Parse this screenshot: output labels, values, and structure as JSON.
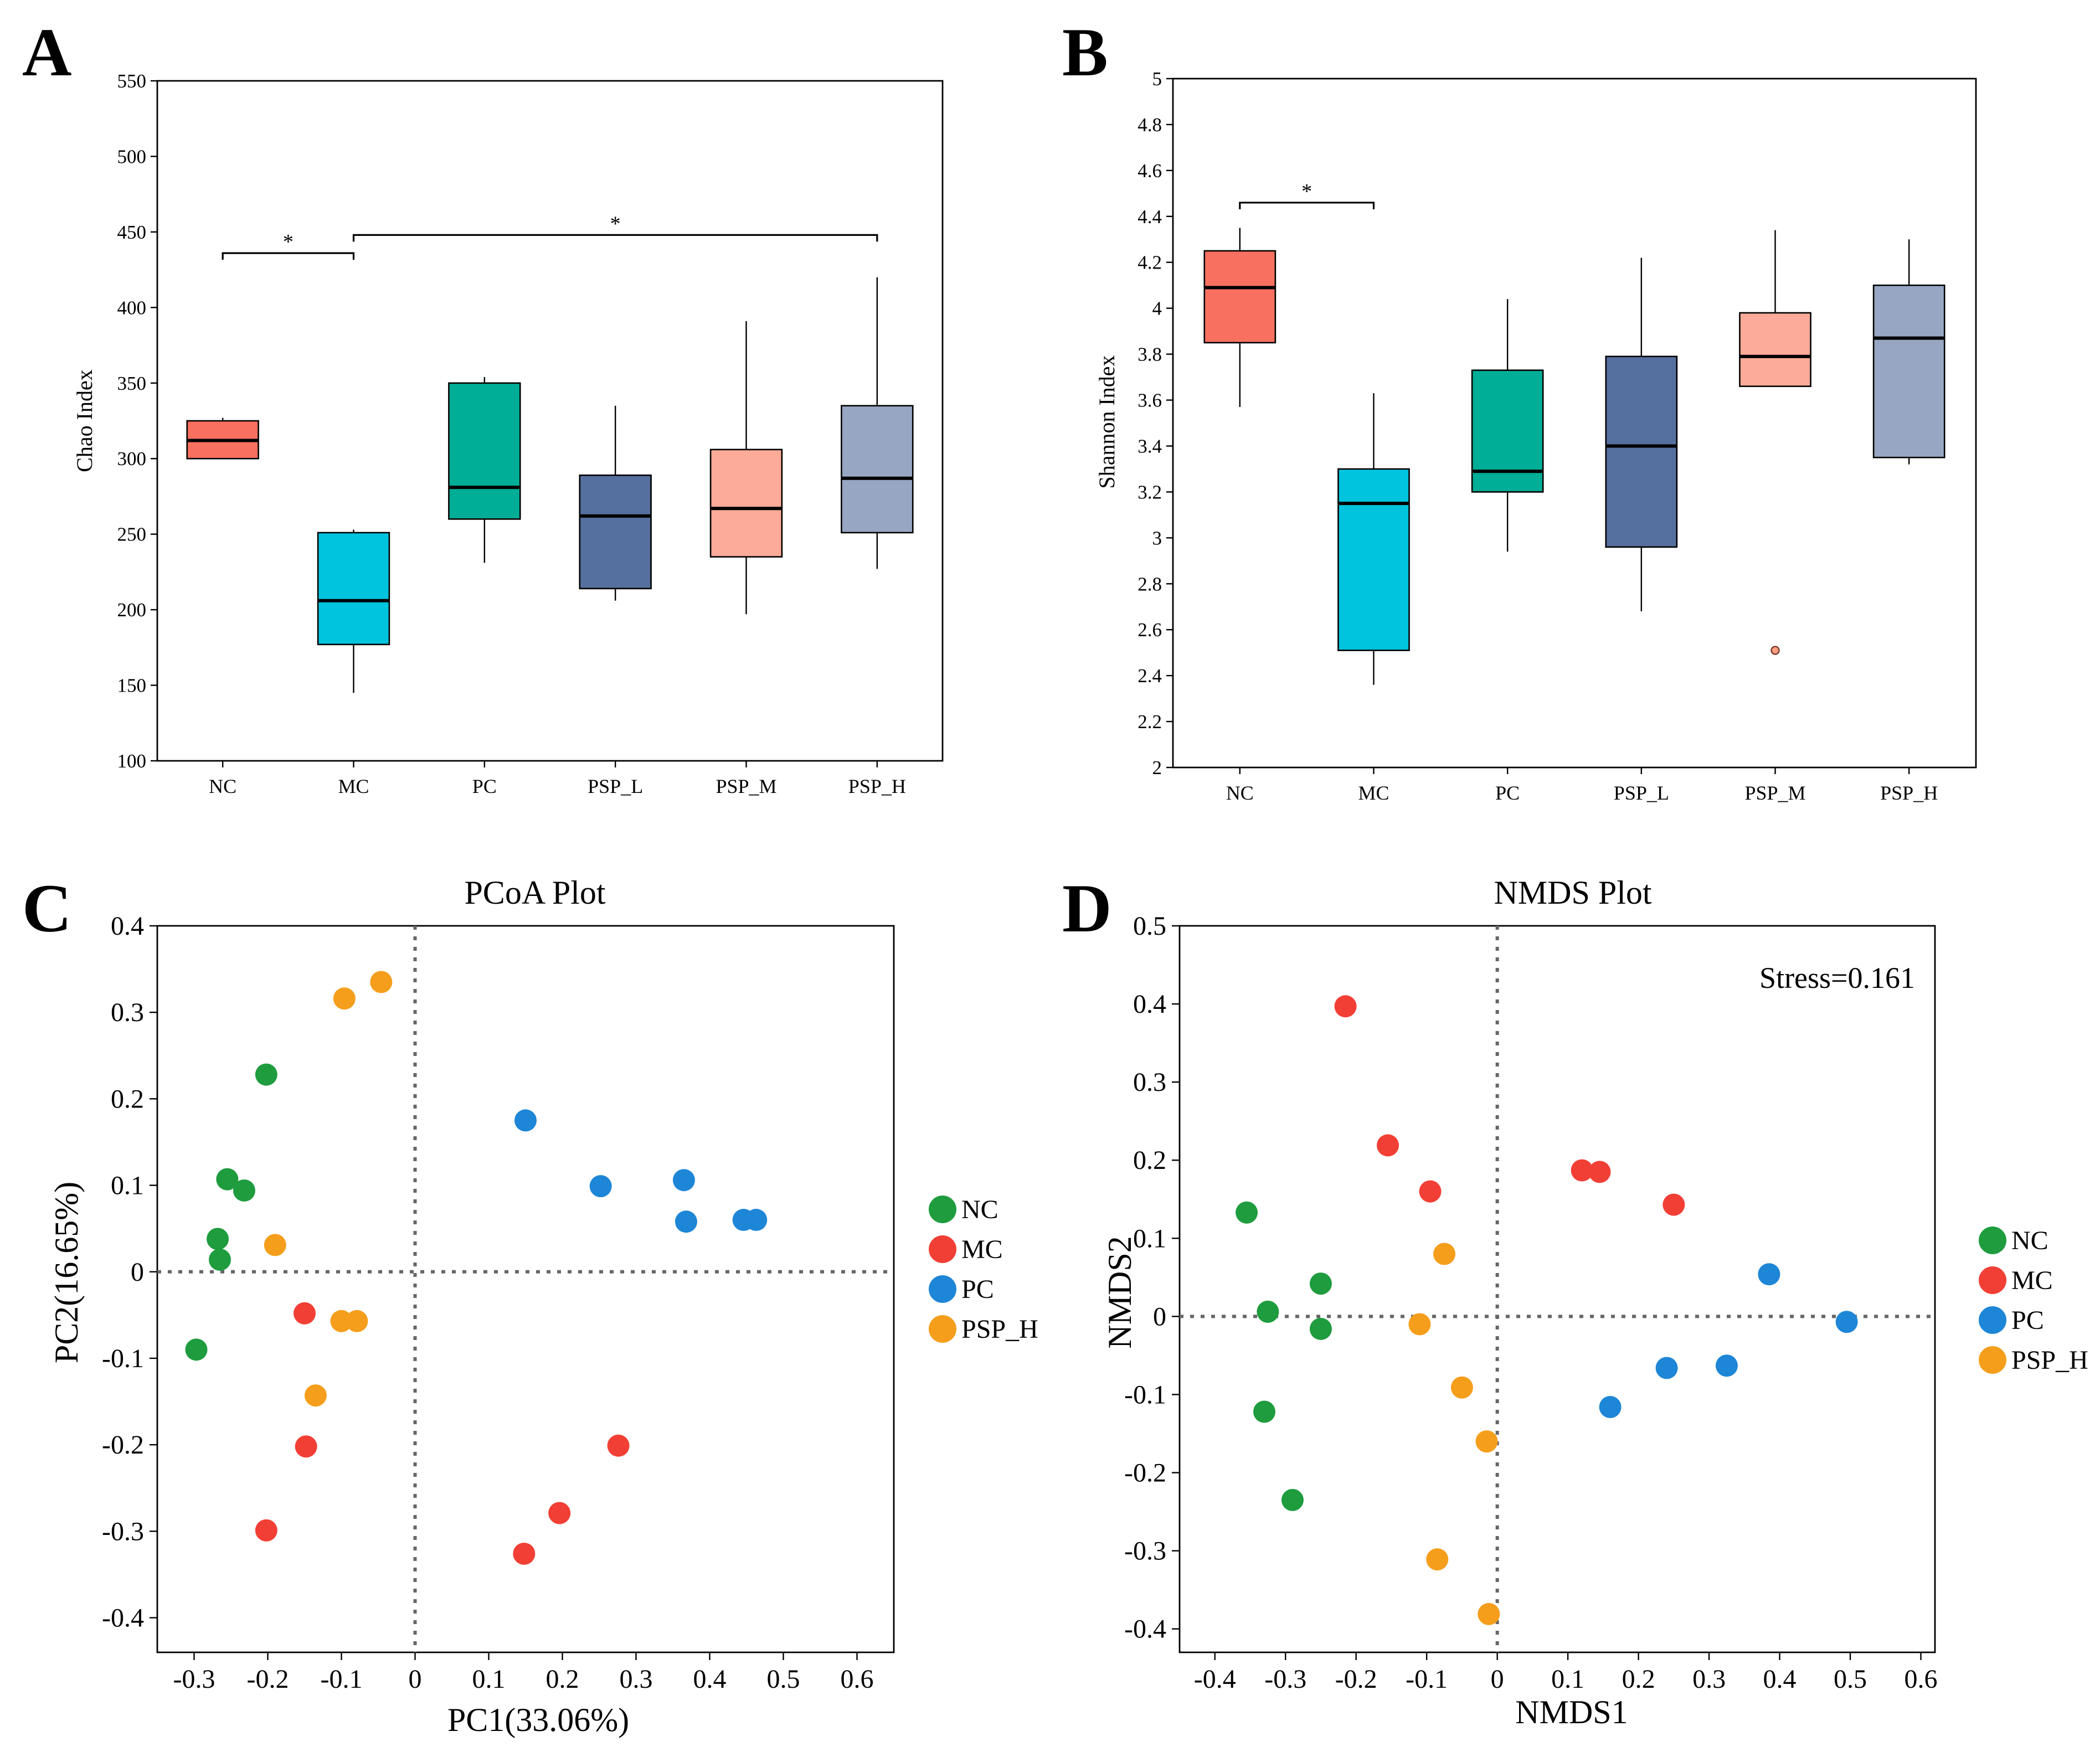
{
  "colors": {
    "box_NC": "#F8705F",
    "box_MC": "#00C4DD",
    "box_PC": "#00AD96",
    "box_PSP_L": "#556F9E",
    "box_PSP_M": "#FCAB98",
    "box_PSP_H": "#97A6C2",
    "pt_NC": "#1E9C3E",
    "pt_MC": "#F23F35",
    "pt_PC": "#1E86D6",
    "pt_PSP_H": "#F59E1C"
  },
  "chart_data": [
    {
      "panel_label": "A",
      "type": "box",
      "title": "",
      "xlabel": "",
      "ylabel": "Chao Index",
      "ylim": [
        100,
        550
      ],
      "yticks": [
        "100",
        "150",
        "200",
        "250",
        "300",
        "350",
        "400",
        "450",
        "500",
        "550"
      ],
      "categories": [
        "NC",
        "MC",
        "PC",
        "PSP_L",
        "PSP_M",
        "PSP_H"
      ],
      "boxes": [
        {
          "group": "NC",
          "min": 300,
          "q1": 300,
          "median": 312,
          "q3": 325,
          "max": 327
        },
        {
          "group": "MC",
          "min": 145,
          "q1": 177,
          "median": 206,
          "q3": 251,
          "max": 253
        },
        {
          "group": "PC",
          "min": 231,
          "q1": 260,
          "median": 281,
          "q3": 350,
          "max": 354
        },
        {
          "group": "PSP_L",
          "min": 206,
          "q1": 214,
          "median": 262,
          "q3": 289,
          "max": 335
        },
        {
          "group": "PSP_M",
          "min": 197,
          "q1": 235,
          "median": 267,
          "q3": 306,
          "max": 391
        },
        {
          "group": "PSP_H",
          "min": 227,
          "q1": 251,
          "median": 287,
          "q3": 335,
          "max": 420
        }
      ],
      "outliers": [],
      "significance": [
        {
          "from": "NC",
          "to": "MC",
          "label": "*",
          "y": 436
        },
        {
          "from": "MC",
          "to": "PSP_H",
          "label": "*",
          "y": 448
        }
      ]
    },
    {
      "panel_label": "B",
      "type": "box",
      "title": "",
      "xlabel": "",
      "ylabel": "Shannon Index",
      "ylim": [
        2,
        5
      ],
      "yticks": [
        "2",
        "2.2",
        "2.4",
        "2.6",
        "2.8",
        "3",
        "3.2",
        "3.4",
        "3.6",
        "3.8",
        "4",
        "4.2",
        "4.4",
        "4.6",
        "4.8",
        "5"
      ],
      "categories": [
        "NC",
        "MC",
        "PC",
        "PSP_L",
        "PSP_M",
        "PSP_H"
      ],
      "boxes": [
        {
          "group": "NC",
          "min": 3.57,
          "q1": 3.85,
          "median": 4.09,
          "q3": 4.25,
          "max": 4.35
        },
        {
          "group": "MC",
          "min": 2.36,
          "q1": 2.51,
          "median": 3.15,
          "q3": 3.3,
          "max": 3.63
        },
        {
          "group": "PC",
          "min": 2.94,
          "q1": 3.2,
          "median": 3.29,
          "q3": 3.73,
          "max": 4.04
        },
        {
          "group": "PSP_L",
          "min": 2.68,
          "q1": 2.96,
          "median": 3.4,
          "q3": 3.79,
          "max": 4.22
        },
        {
          "group": "PSP_M",
          "min": 3.66,
          "q1": 3.66,
          "median": 3.79,
          "q3": 3.98,
          "max": 4.34
        },
        {
          "group": "PSP_H",
          "min": 3.32,
          "q1": 3.35,
          "median": 3.87,
          "q3": 4.1,
          "max": 4.3
        }
      ],
      "outliers": [
        {
          "group": "PSP_M",
          "value": 2.51
        }
      ],
      "significance": [
        {
          "from": "NC",
          "to": "MC",
          "label": "*",
          "y": 4.46
        }
      ]
    },
    {
      "panel_label": "C",
      "type": "scatter",
      "title": "PCoA Plot",
      "xlabel": "PC1(33.06%)",
      "ylabel": "PC2(16.65%)",
      "xlim": [
        -0.35,
        0.65
      ],
      "ylim": [
        -0.44,
        0.4
      ],
      "xticks": [
        "-0.3",
        "-0.2",
        "-0.1",
        "0",
        "0.1",
        "0.2",
        "0.3",
        "0.4",
        "0.5",
        "0.6"
      ],
      "yticks": [
        "-0.4",
        "-0.3",
        "-0.2",
        "-0.1",
        "0",
        "0.1",
        "0.2",
        "0.3",
        "0.4"
      ],
      "legend": [
        "NC",
        "MC",
        "PC",
        "PSP_H"
      ],
      "series": [
        {
          "name": "NC",
          "points": [
            [
              -0.202,
              0.228
            ],
            [
              -0.255,
              0.107
            ],
            [
              -0.232,
              0.094
            ],
            [
              -0.268,
              0.038
            ],
            [
              -0.265,
              0.014
            ],
            [
              -0.297,
              -0.09
            ]
          ]
        },
        {
          "name": "MC",
          "points": [
            [
              -0.15,
              -0.048
            ],
            [
              -0.148,
              -0.202
            ],
            [
              -0.202,
              -0.299
            ],
            [
              0.148,
              -0.326
            ],
            [
              0.196,
              -0.279
            ],
            [
              0.276,
              -0.201
            ]
          ]
        },
        {
          "name": "PC",
          "points": [
            [
              0.15,
              0.175
            ],
            [
              0.252,
              0.099
            ],
            [
              0.365,
              0.106
            ],
            [
              0.368,
              0.058
            ],
            [
              0.446,
              0.06
            ],
            [
              0.463,
              0.06
            ]
          ]
        },
        {
          "name": "PSP_H",
          "points": [
            [
              -0.096,
              0.316
            ],
            [
              -0.046,
              0.335
            ],
            [
              -0.19,
              0.031
            ],
            [
              -0.1,
              -0.057
            ],
            [
              -0.079,
              -0.057
            ],
            [
              -0.135,
              -0.143
            ]
          ]
        }
      ]
    },
    {
      "panel_label": "D",
      "type": "scatter",
      "title": "NMDS Plot",
      "xlabel": "NMDS1",
      "ylabel": "NMDS2",
      "annotation": "Stress=0.161",
      "xlim": [
        -0.45,
        0.62
      ],
      "ylim": [
        -0.43,
        0.5
      ],
      "xticks": [
        "-0.4",
        "-0.3",
        "-0.2",
        "-0.1",
        "0",
        "0.1",
        "0.2",
        "0.3",
        "0.4",
        "0.5",
        "0.6"
      ],
      "yticks": [
        "-0.4",
        "-0.3",
        "-0.2",
        "-0.1",
        "0",
        "0.1",
        "0.2",
        "0.3",
        "0.4",
        "0.5"
      ],
      "legend": [
        "NC",
        "MC",
        "PC",
        "PSP_H"
      ],
      "series": [
        {
          "name": "NC",
          "points": [
            [
              -0.355,
              0.133
            ],
            [
              -0.325,
              0.006
            ],
            [
              -0.25,
              0.042
            ],
            [
              -0.25,
              -0.016
            ],
            [
              -0.33,
              -0.122
            ],
            [
              -0.29,
              -0.235
            ]
          ]
        },
        {
          "name": "MC",
          "points": [
            [
              -0.215,
              0.397
            ],
            [
              -0.155,
              0.219
            ],
            [
              -0.095,
              0.16
            ],
            [
              0.12,
              0.187
            ],
            [
              0.145,
              0.185
            ],
            [
              0.25,
              0.143
            ]
          ]
        },
        {
          "name": "PC",
          "points": [
            [
              0.385,
              0.054
            ],
            [
              0.495,
              -0.007
            ],
            [
              0.325,
              -0.063
            ],
            [
              0.24,
              -0.066
            ],
            [
              0.16,
              -0.116
            ]
          ]
        },
        {
          "name": "PSP_H",
          "points": [
            [
              -0.075,
              0.08
            ],
            [
              -0.11,
              -0.01
            ],
            [
              -0.05,
              -0.091
            ],
            [
              -0.015,
              -0.16
            ],
            [
              -0.085,
              -0.311
            ],
            [
              -0.012,
              -0.381
            ]
          ]
        }
      ]
    }
  ]
}
